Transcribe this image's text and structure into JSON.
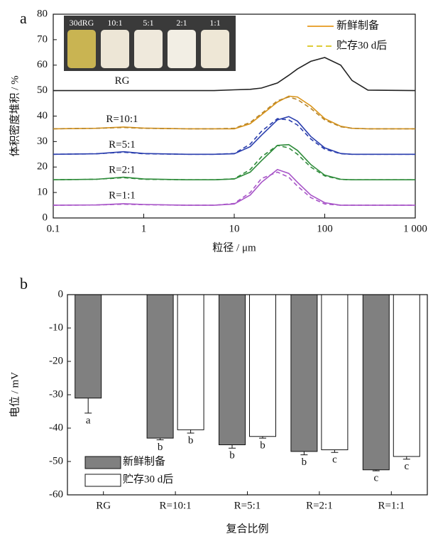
{
  "chart_data": [
    {
      "type": "line",
      "panel": "a",
      "xscale": "log",
      "xlabel": "粒径 / μm",
      "ylabel": "体积密度堆积 / %",
      "xlim": [
        0.1,
        1000
      ],
      "xticks": [
        0.1,
        1,
        10,
        100,
        {
          "value": 1000,
          "label": "1 000"
        }
      ],
      "ylim": [
        0,
        80
      ],
      "yticks": [
        0,
        10,
        20,
        30,
        40,
        50,
        60,
        70,
        80
      ],
      "inset_labels": [
        "30dRG",
        "10:1",
        "5:1",
        "2:1",
        "1:1"
      ],
      "legend": [
        {
          "name": "新鲜制备",
          "color": "#e69a1e",
          "style": "solid"
        },
        {
          "name": "贮存30 d后",
          "color": "#d9c41c",
          "style": "dashed"
        }
      ],
      "x": [
        0.1,
        0.3,
        0.6,
        1,
        3,
        6,
        10,
        15,
        20,
        30,
        40,
        50,
        70,
        100,
        150,
        200,
        300,
        1000
      ],
      "series": [
        {
          "label": "RG",
          "color": "#222222",
          "style": "solid",
          "values": [
            50,
            50,
            50,
            50,
            50,
            50,
            50.3,
            50.5,
            51,
            53,
            56,
            58.5,
            61.5,
            63,
            60,
            54,
            50.2,
            50
          ]
        },
        {
          "label": "R=10:1",
          "color": "#d9941a",
          "style": "solid",
          "values": [
            35,
            35.2,
            35.7,
            35.3,
            35,
            35,
            35,
            37,
            40.5,
            45.5,
            47.8,
            47.5,
            44,
            39,
            36,
            35.2,
            35,
            35
          ]
        },
        {
          "color": "#b8862a",
          "style": "dashed",
          "values": [
            35,
            35.2,
            35.5,
            35.2,
            35,
            35,
            35.2,
            37.5,
            41,
            46,
            47.5,
            46.5,
            43,
            38.5,
            35.8,
            35.2,
            35,
            35
          ]
        },
        {
          "label": "R=5:1",
          "color": "#2b3fae",
          "style": "solid",
          "values": [
            25,
            25.2,
            26,
            25.3,
            25,
            25,
            25.2,
            28,
            32.5,
            38.5,
            39.8,
            38,
            32,
            27.5,
            25.3,
            25,
            25,
            25
          ]
        },
        {
          "color": "#2b3fae",
          "style": "dashed",
          "values": [
            25,
            25.2,
            25.8,
            25.2,
            25,
            25,
            25.3,
            29,
            34,
            39,
            38.5,
            36.5,
            31,
            27,
            25.2,
            25,
            25,
            25
          ]
        },
        {
          "label": "R=2:1",
          "color": "#2e8b3a",
          "style": "solid",
          "values": [
            15,
            15.2,
            16,
            15.3,
            15,
            15,
            15.3,
            18,
            22.5,
            28.5,
            28.8,
            26.5,
            21,
            16.8,
            15.2,
            15,
            15,
            15
          ]
        },
        {
          "color": "#2e8b3a",
          "style": "dashed",
          "values": [
            15,
            15.2,
            15.8,
            15.2,
            15,
            15,
            15.4,
            19,
            24,
            28.5,
            27.5,
            25,
            20,
            16.5,
            15.1,
            15,
            15,
            15
          ]
        },
        {
          "label": "R=1:1",
          "color": "#a855c8",
          "style": "solid",
          "values": [
            5,
            5.1,
            5.6,
            5.3,
            5,
            5,
            5.5,
            9,
            14,
            19,
            17.5,
            14,
            9,
            6,
            5,
            5,
            5,
            5
          ]
        },
        {
          "color": "#a855c8",
          "style": "dashed",
          "values": [
            5,
            5.1,
            5.4,
            5.2,
            5,
            5,
            5.7,
            10,
            15.5,
            18,
            16,
            12.5,
            8,
            5.5,
            5,
            5,
            5,
            5
          ]
        }
      ]
    },
    {
      "type": "bar",
      "panel": "b",
      "xlabel": "复合比例",
      "ylabel": "电位 / mV",
      "categories": [
        "RG",
        "R=10:1",
        "R=5:1",
        "R=2:1",
        "R=1:1"
      ],
      "ylim": [
        -60,
        0
      ],
      "yticks": [
        0,
        -10,
        -20,
        -30,
        -40,
        -50,
        -60
      ],
      "series": [
        {
          "name": "新鲜制备",
          "color": "#808080",
          "values": [
            -31,
            -43,
            -45,
            -47,
            -52.5
          ],
          "errors": [
            4.5,
            0.5,
            1,
            1,
            0.3
          ],
          "letters": [
            "a",
            "b",
            "b",
            "b",
            "c"
          ]
        },
        {
          "name": "贮存30 d后",
          "color": "#ffffff",
          "values": [
            null,
            -40.5,
            -42.5,
            -46.5,
            -48.5
          ],
          "errors": [
            null,
            1,
            0.5,
            0.8,
            0.8
          ],
          "letters": [
            null,
            "b",
            "b",
            "c",
            "c"
          ]
        }
      ]
    }
  ]
}
